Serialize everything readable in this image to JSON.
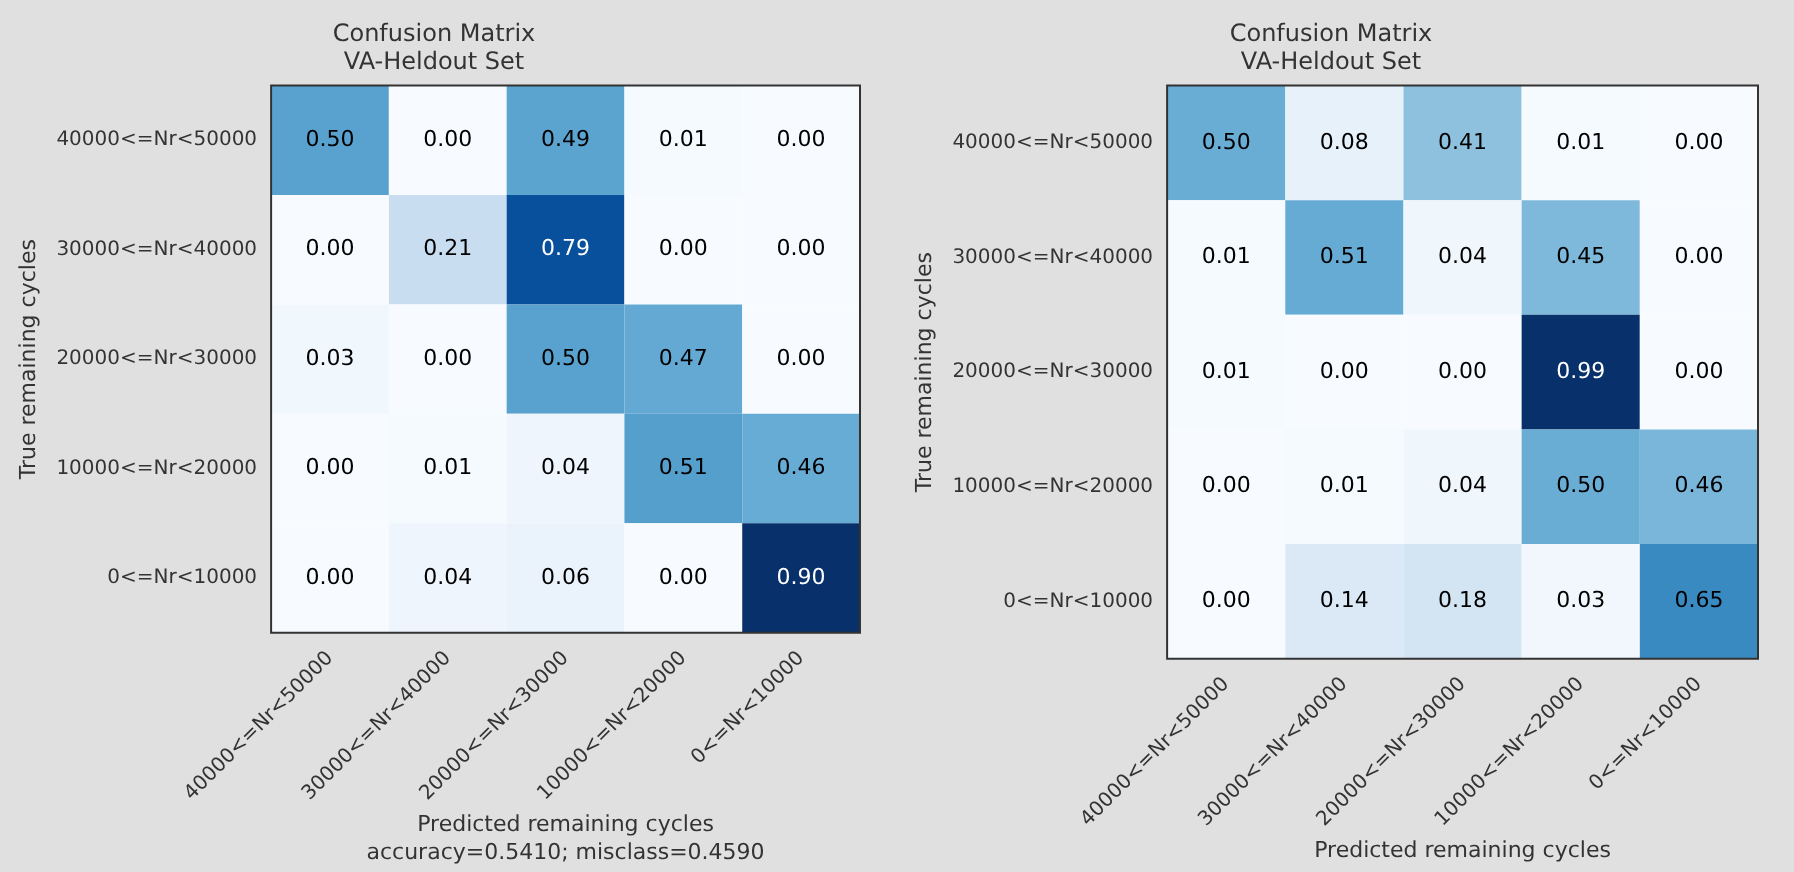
{
  "chart_data": [
    {
      "type": "heatmap",
      "title": "Confusion Matrix",
      "subtitle": "VA-Heldout Set",
      "xlabel": "Predicted remaining cycles",
      "ylabel": "True remaining cycles",
      "categories": [
        "40000<=Nr<50000",
        "30000<=Nr<40000",
        "20000<=Nr<30000",
        "10000<=Nr<20000",
        "0<=Nr<10000"
      ],
      "y_categories": [
        "40000<=Nr<50000",
        "30000<=Nr<40000",
        "20000<=Nr<30000",
        "10000<=Nr<20000",
        "0<=Nr<10000"
      ],
      "cells": [
        [
          0.5,
          0.0,
          0.49,
          0.01,
          0.0
        ],
        [
          0.0,
          0.21,
          0.79,
          0.0,
          0.0
        ],
        [
          0.03,
          0.0,
          0.5,
          0.47,
          0.0
        ],
        [
          0.0,
          0.01,
          0.04,
          0.51,
          0.46
        ],
        [
          0.0,
          0.04,
          0.06,
          0.0,
          0.9
        ]
      ],
      "cell_labels": [
        [
          "0.50",
          "0.00",
          "0.49",
          "0.01",
          "0.00"
        ],
        [
          "0.00",
          "0.21",
          "0.79",
          "0.00",
          "0.00"
        ],
        [
          "0.03",
          "0.00",
          "0.50",
          "0.47",
          "0.00"
        ],
        [
          "0.00",
          "0.01",
          "0.04",
          "0.51",
          "0.46"
        ],
        [
          "0.00",
          "0.04",
          "0.06",
          "0.00",
          "0.90"
        ]
      ],
      "annotations": [
        "accuracy=0.5410; misclass=0.4590"
      ]
    },
    {
      "type": "heatmap",
      "title": "Confusion Matrix",
      "subtitle": "VA-Heldout Set",
      "xlabel": "Predicted remaining cycles",
      "ylabel": "True remaining cycles",
      "categories": [
        "40000<=Nr<50000",
        "30000<=Nr<40000",
        "20000<=Nr<30000",
        "10000<=Nr<20000",
        "0<=Nr<10000"
      ],
      "y_categories": [
        "40000<=Nr<50000",
        "30000<=Nr<40000",
        "20000<=Nr<30000",
        "10000<=Nr<20000",
        "0<=Nr<10000"
      ],
      "cells": [
        [
          0.5,
          0.08,
          0.41,
          0.01,
          0.0
        ],
        [
          0.01,
          0.51,
          0.04,
          0.45,
          0.0
        ],
        [
          0.01,
          0.0,
          0.0,
          0.99,
          0.0
        ],
        [
          0.0,
          0.01,
          0.04,
          0.5,
          0.46
        ],
        [
          0.0,
          0.14,
          0.18,
          0.03,
          0.65
        ]
      ],
      "cell_labels": [
        [
          "0.50",
          "0.08",
          "0.41",
          "0.01",
          "0.00"
        ],
        [
          "0.01",
          "0.51",
          "0.04",
          "0.45",
          "0.00"
        ],
        [
          "0.01",
          "0.00",
          "0.00",
          "0.99",
          "0.00"
        ],
        [
          "0.00",
          "0.01",
          "0.04",
          "0.50",
          "0.46"
        ],
        [
          "0.00",
          "0.14",
          "0.18",
          "0.03",
          "0.65"
        ]
      ]
    }
  ]
}
